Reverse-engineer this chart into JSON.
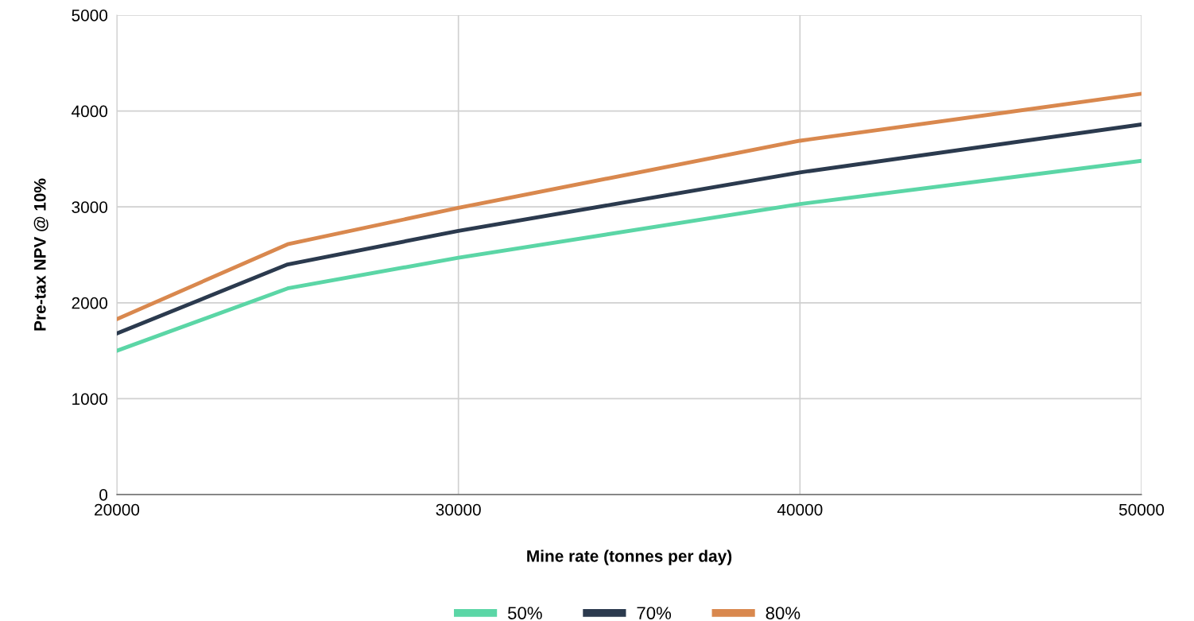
{
  "chart_data": {
    "type": "line",
    "xlabel": "Mine rate (tonnes per day)",
    "ylabel": "Pre-tax NPV @ 10%",
    "x": [
      20000,
      25000,
      30000,
      40000,
      50000
    ],
    "series": [
      {
        "name": "50%",
        "color": "#5bd6a6",
        "values": [
          1500,
          2150,
          2470,
          3030,
          3480
        ]
      },
      {
        "name": "70%",
        "color": "#2b3a4e",
        "values": [
          1680,
          2400,
          2750,
          3360,
          3860
        ]
      },
      {
        "name": "80%",
        "color": "#d9884e",
        "values": [
          1830,
          2610,
          2990,
          3690,
          4180
        ]
      }
    ],
    "xlim": [
      20000,
      50000
    ],
    "xticks": [
      20000,
      30000,
      40000,
      50000
    ],
    "ylim": [
      0,
      5000
    ],
    "yticks": [
      0,
      1000,
      2000,
      3000,
      4000,
      5000
    ],
    "grid": true,
    "legend": "bottom",
    "marker": "none",
    "line_style": "solid"
  }
}
